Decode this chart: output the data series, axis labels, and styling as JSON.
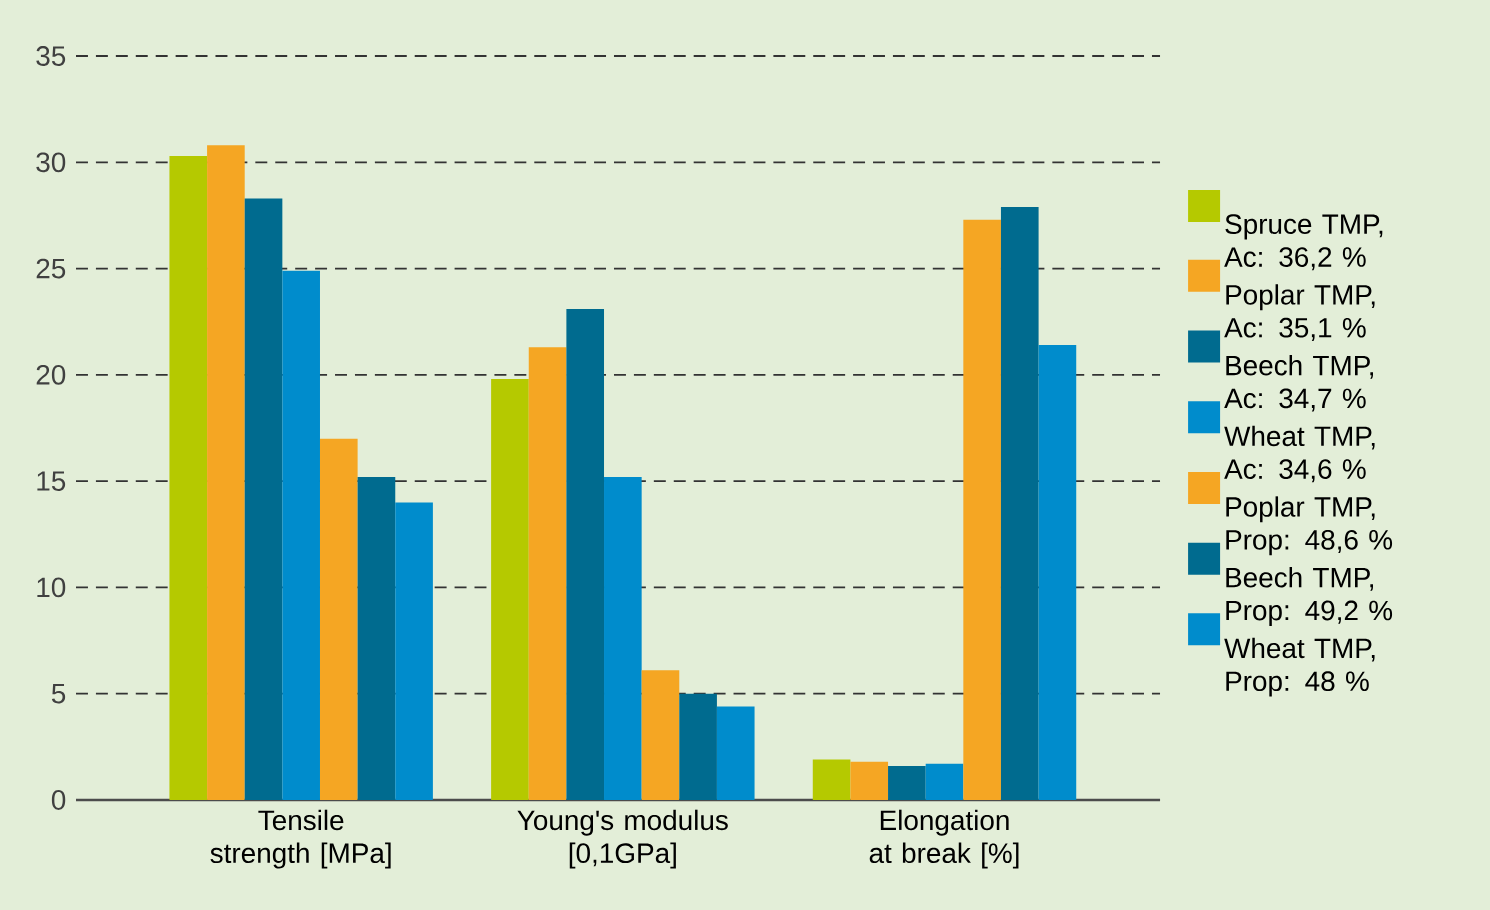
{
  "chart_data": {
    "type": "bar",
    "categories": [
      "Tensile strength [MPa]",
      "Young's modulus [0,1GPa]",
      "Elongation at break [%]"
    ],
    "series": [
      {
        "name": "Spruce TMP, Ac: 36,2 %",
        "color": "#b5c900",
        "values": [
          30.3,
          19.8,
          1.9
        ]
      },
      {
        "name": "Poplar TMP, Ac: 35,1 %",
        "color": "#f5a623",
        "values": [
          30.8,
          21.3,
          1.8
        ]
      },
      {
        "name": "Beech TMP, Ac: 34,7 %",
        "color": "#006b8f",
        "values": [
          28.3,
          23.1,
          1.6
        ]
      },
      {
        "name": "Wheat TMP, Ac: 34,6 %",
        "color": "#008ccc",
        "values": [
          24.9,
          15.2,
          1.7
        ]
      },
      {
        "name": "Poplar TMP, Prop: 48,6 %",
        "color": "#f5a623",
        "values": [
          17.0,
          6.1,
          27.3
        ]
      },
      {
        "name": "Beech TMP, Prop: 49,2 %",
        "color": "#006b8f",
        "values": [
          15.2,
          5.0,
          27.9
        ]
      },
      {
        "name": "Wheat TMP, Prop: 48 %",
        "color": "#008ccc",
        "values": [
          14.0,
          4.4,
          21.4
        ]
      }
    ],
    "ylim": [
      0,
      35
    ],
    "yticks": [
      0,
      5,
      10,
      15,
      20,
      25,
      30,
      35
    ],
    "grid": "y",
    "legend": "right"
  }
}
